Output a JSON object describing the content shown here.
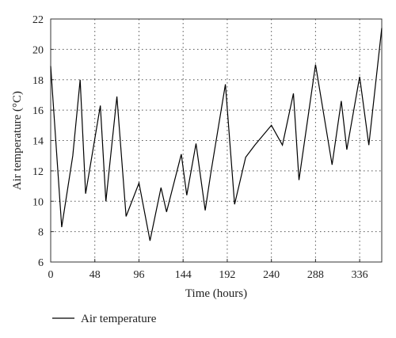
{
  "chart_data": {
    "type": "line",
    "xlabel": "Time (hours)",
    "ylabel": "Air temperature (°C)",
    "xlim": [
      0,
      360
    ],
    "ylim": [
      6,
      22
    ],
    "xticks": [
      0,
      48,
      96,
      144,
      192,
      240,
      288,
      336
    ],
    "yticks": [
      6,
      8,
      10,
      12,
      14,
      16,
      18,
      20,
      22
    ],
    "grid": true,
    "grid_style": "dotted",
    "legend_position": "bottom-left",
    "series": [
      {
        "name": "Air temperature",
        "color": "#000000",
        "x": [
          0,
          12,
          24,
          32,
          38,
          54,
          60,
          72,
          82,
          96,
          108,
          120,
          126,
          142,
          148,
          158,
          168,
          174,
          190,
          200,
          212,
          222,
          240,
          252,
          264,
          270,
          288,
          306,
          316,
          322,
          336,
          346,
          360
        ],
        "y": [
          18.9,
          8.3,
          13.0,
          18.0,
          10.5,
          16.3,
          10.0,
          16.9,
          9.0,
          11.2,
          7.4,
          10.9,
          9.3,
          13.1,
          10.4,
          13.8,
          9.4,
          11.8,
          17.7,
          9.8,
          12.9,
          13.7,
          15.0,
          13.7,
          17.1,
          11.4,
          19.0,
          12.4,
          16.6,
          13.4,
          18.2,
          13.7,
          21.4
        ]
      }
    ]
  }
}
